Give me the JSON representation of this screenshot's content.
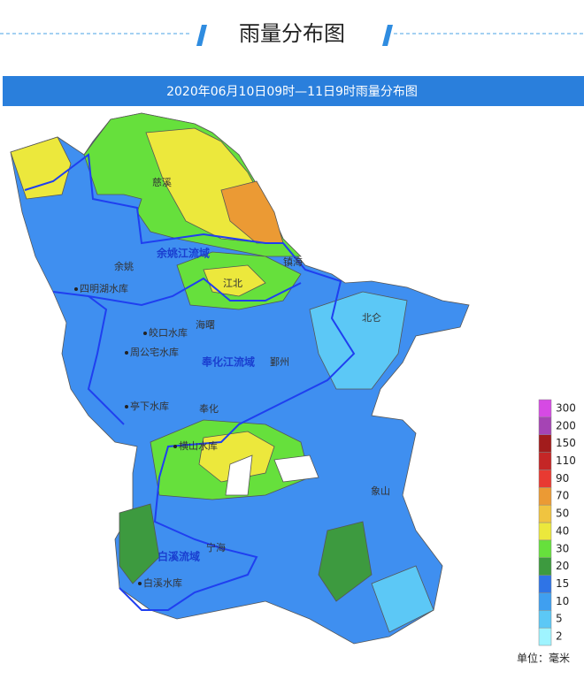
{
  "header": {
    "title": "雨量分布图"
  },
  "map": {
    "title": "2020年06月10日09时—11日9时雨量分布图",
    "labels": [
      "慈溪",
      "余姚江流域",
      "余姚",
      "四明湖水库",
      "镇海",
      "江北",
      "北仑",
      "皎口水库",
      "海曙",
      "周公宅水库",
      "奉化江流域",
      "鄞州",
      "亭下水库",
      "奉化",
      "横山水库",
      "象山",
      "宁海",
      "白溪流域",
      "白溪水库"
    ]
  },
  "legend": {
    "items": [
      {
        "value": 2,
        "color": "#9ff4ff"
      },
      {
        "value": 5,
        "color": "#5cc8f6"
      },
      {
        "value": 10,
        "color": "#3f9ff0"
      },
      {
        "value": 15,
        "color": "#2f74e6"
      },
      {
        "value": 20,
        "color": "#3d9a3f"
      },
      {
        "value": 30,
        "color": "#66e03c"
      },
      {
        "value": 40,
        "color": "#ece83c"
      },
      {
        "value": 50,
        "color": "#f0c440"
      },
      {
        "value": 70,
        "color": "#eb9a34"
      },
      {
        "value": 90,
        "color": "#e83a32"
      },
      {
        "value": 110,
        "color": "#c42626"
      },
      {
        "value": 150,
        "color": "#a21c1c"
      },
      {
        "value": 200,
        "color": "#a544b4"
      },
      {
        "value": 300,
        "color": "#d64ae4"
      }
    ],
    "unit": "单位：毫米"
  }
}
